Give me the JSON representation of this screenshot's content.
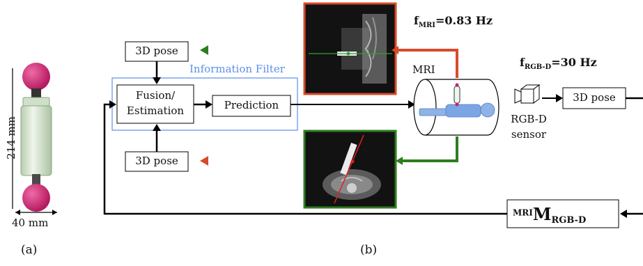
{
  "panel_a": {
    "height_label": "214 mm",
    "width_label": "40 mm",
    "caption": "(a)"
  },
  "panel_b": {
    "caption": "(b)",
    "info_filter_label": "Information Filter",
    "fusion_label_line1": "Fusion/",
    "fusion_label_line2": "Estimation",
    "prediction_label": "Prediction",
    "pose_top_label": "3D pose",
    "pose_bottom_label": "3D pose",
    "pose_right_label": "3D pose",
    "mri_label": "MRI",
    "rgbd_label_line1": "RGB-D",
    "rgbd_label_line2": "sensor",
    "f_mri": {
      "base": "f",
      "sub": "MRI",
      "value": "=0.83 Hz"
    },
    "f_rgbd": {
      "base": "f",
      "sub": "RGB-D",
      "value": "=30 Hz"
    },
    "transform": {
      "sup": "MRI",
      "base": "M",
      "sub": "RGB-D"
    }
  },
  "colors": {
    "green": "#2e7d1f",
    "red": "#d84a2a",
    "blue_filter": "#5b8fe8",
    "magenta": "#c8206a",
    "phantom_body": "#d5e6d0"
  }
}
